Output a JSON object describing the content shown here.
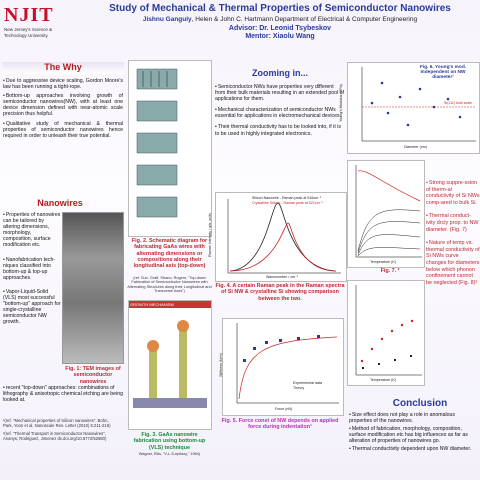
{
  "header": {
    "logo_name": "NJIT",
    "logo_sub": "New Jersey's Science & Technology University",
    "title": "Study of Mechanical & Thermal Properties of Semiconductor Nanowires",
    "author": "Jishnu Ganguly",
    "affiliation": ", Helen & John C. Hartmann Department of Electrical & Computer Engineering",
    "advisor": "Advisor: Dr. Leonid Tsybeskov",
    "mentor": "Mentor: Xiaolu Wang"
  },
  "why": {
    "heading": "The Why",
    "bullets": [
      "Due to aggressive device scaling, Gordon Moore's law has been running a tight-rope.",
      "Bottom-up approaches involving growth of semiconductor nanowires(NW), with at least one device dimension defined with near-atomic scale precision thus helpful.",
      "Qualitative study of mechanical & thermal properties of semiconductor nanowires hence required in order to unleash their true potential."
    ]
  },
  "nanowires": {
    "heading": "Nanowires",
    "bullets": [
      "Properties of nanowires can be tailored by altering dimensions, morphology, composition, surface modification etc.",
      "Nanofabrication tech-niques classified into bottom-up & top-up approaches.",
      "Vapor-Liquid-Solid (VLS) most successful \"bottom-up\" approach for single-crystalline semiconductor NW growth.",
      "recent \"top-down\" approaches: combinations of lithography & anisotropic chemical etching are being looked at."
    ],
    "refs": [
      "¹(ref. \"Mechanical properties of Silicon nanowires\", Bohn, Park, Yoon et al, Nanoscale Res. Letter (2010) 5:211-216)",
      "²(ref. \"Thermal Transport in Semiconductor Nanowires\", Ananys, Rodriguez, Jimenez dx.doi.org/10.5772/52580)"
    ]
  },
  "figures": {
    "fig1": "Fig. 1: TEM images of semiconductor nanowires",
    "fig2": "Fig. 2. Schematic diagram for fabricating GaAs wires with alternating dimensions or compositions along their longitudinal axis (top-down)",
    "fig2_ref": "(ref. Sun, Graff, Strano, Rogers, \"Top-down Fabrication of Semiconductor Nanowires with Alternating Structures along their Longitudinal and Transverse Axes\")",
    "growth": "GROWTH MECHANISM",
    "fig3": "Fig. 3. GaAs nanowire fabrication using bottom-up (VLS) technique",
    "fig3_ref": "Wagner, Ellis, \"V-L-S-epitaxy,\" 1964)",
    "fig4": "Fig. 4. A certain Raman peak in the Raman spectra of Si NW & crystalline Si showing comparison between the two.",
    "raman_legend": [
      "Silicon Nanowire - Raman peak at 516cm⁻¹",
      "Crystalline Silicon - Raman peak at 521cm⁻¹"
    ],
    "raman_y": "Raman Intensity / arb. units",
    "raman_x": "Wavenumber / cm⁻¹",
    "fig5": "Fig. 5. Force const of NW depends on applied force during indentation¹",
    "stiff_legend": [
      "Experimental data",
      "Theory"
    ],
    "stiff_y": "Stiffness (N/m)",
    "stiff_x": "Force (nN)",
    "fig6": "Fig. 6. Young's mod. Independent on NW diameter¹",
    "fig6_note": "Si(111) bulk scale",
    "fig6_y": "Young's Modulus (GPa)",
    "fig6_x": "Diameter (nm)",
    "temp_x": "Temperature (K)",
    "fig7": "Fig. 7. ²"
  },
  "zooming": {
    "heading": "Zooming in...",
    "bullets": [
      "Semiconductor NWs have properties very different from their bulk materials resulting in an extended pool of applications for them.",
      "Mechanical characterization of semiconductor NWs essential for applications in electromechanical devices.",
      "Their thermal conductivity  has to be looked into, if it is to be used in highly integrated electronics."
    ]
  },
  "right": {
    "bullets": [
      "Strong suppre-ssion of therm-al conductivity of Si NWs comp-ared to bulk Si.",
      "Thermal conduct-ivity drcly prop. to NW diameter. (Fig. 7)",
      "Nature of temp vs. thermal conductivity of Si NWs curve changes for diameters below which phonon confinement cannot be neglected (Fig. 8)²"
    ]
  },
  "conclusion": {
    "heading": "Conclusion",
    "bullets": [
      "Size effect does not play a role in anomalous properties of the nanowires.",
      "Method of fabrication, morphology, composition, surface modification etc has big influences as far as alteration of properties of nanowires go.",
      "Thermal conductivity dependent upon NW diameter."
    ]
  }
}
